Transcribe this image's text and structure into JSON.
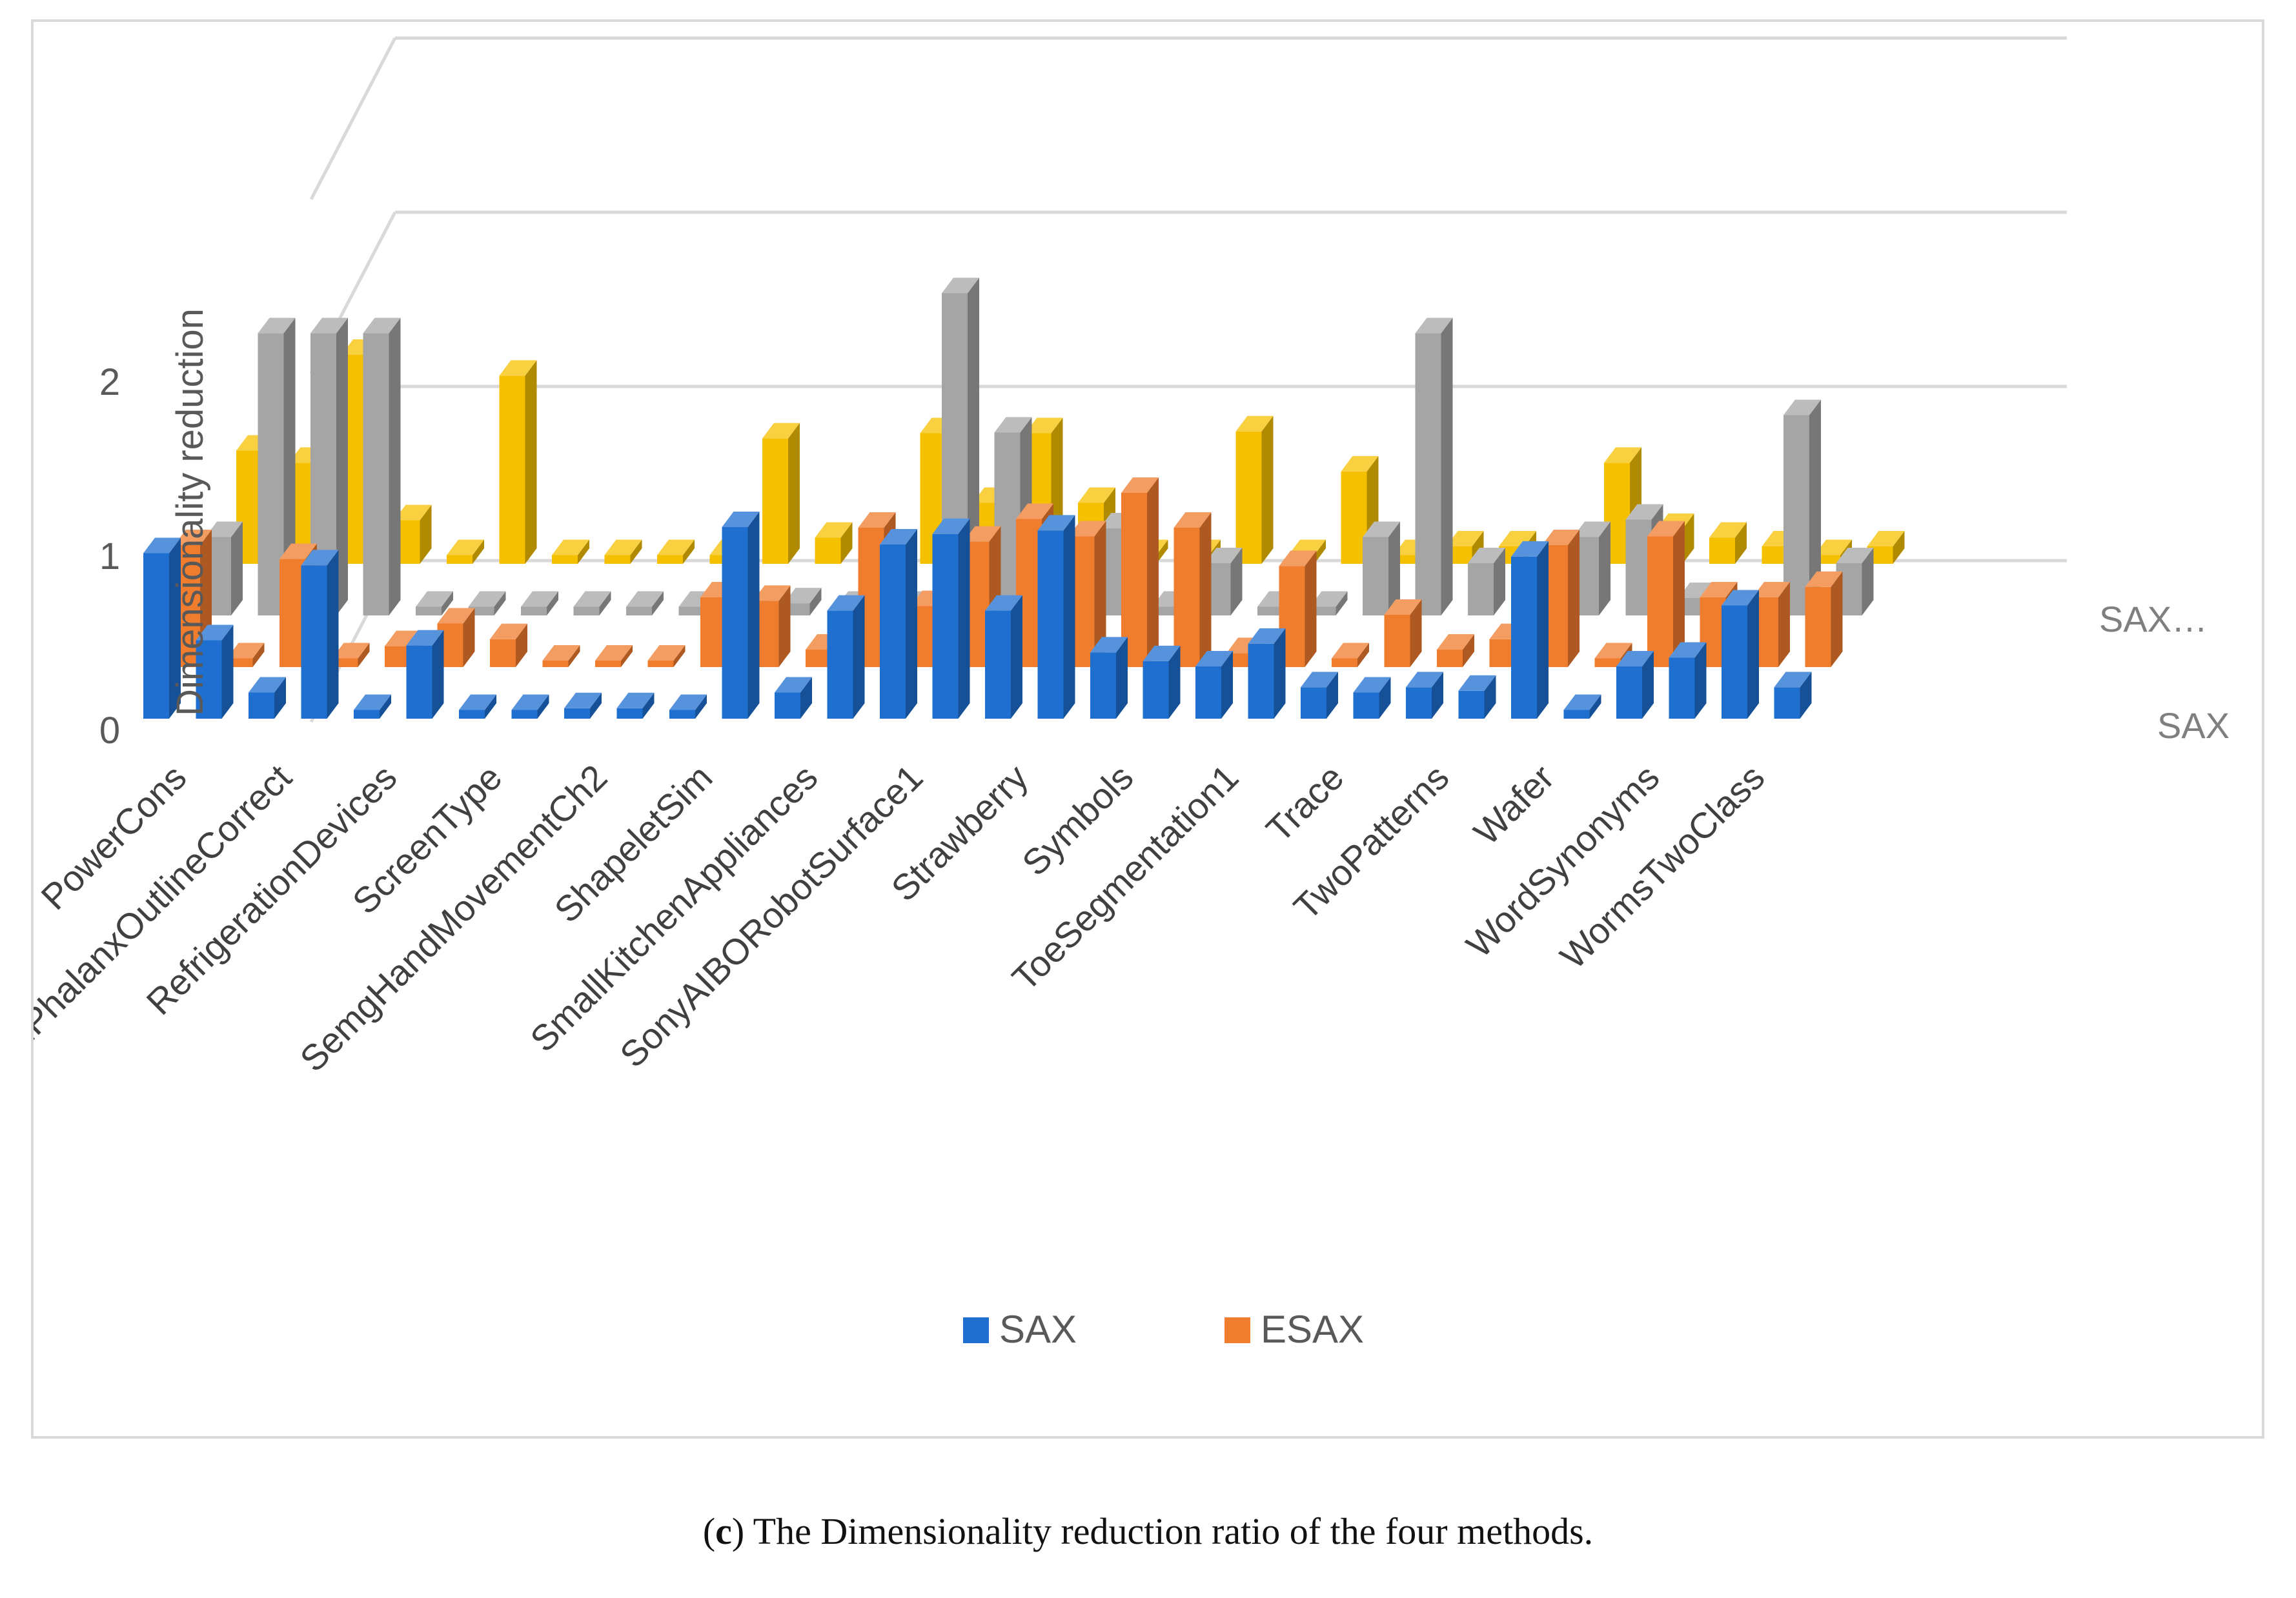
{
  "caption": {
    "letter": "c",
    "open": "(",
    "close": ")",
    "text": " The Dimensionality reduction ratio of the four methods."
  },
  "chart_data": {
    "type": "bar",
    "subtype": "3d-column",
    "ylabel": "Dimensionality reduction",
    "yticks": [
      "0",
      "1",
      "2"
    ],
    "ylim": [
      0,
      3
    ],
    "categories": [
      "PowerCons",
      "",
      "ProximalPhalanxOutlineCorrect",
      "",
      "RefrigerationDevices",
      "",
      "ScreenType",
      "",
      "SemgHandMovementCh2",
      "",
      "ShapeletSim",
      "",
      "SmallKitchenAppliances",
      "",
      "SonyAIBORobotSurface1",
      "",
      "Strawberry",
      "",
      "Symbols",
      "",
      "ToeSegmentation1",
      "",
      "Trace",
      "",
      "TwoPatterns",
      "",
      "Wafer",
      "",
      "WordSynonyms",
      "",
      "WormsTwoClass",
      ""
    ],
    "visible_category_labels": [
      "PowerCons",
      "ProximalPhalanxOutlineCorrect",
      "RefrigerationDevices",
      "ScreenType",
      "SemgHandMovementCh2",
      "ShapeletSim",
      "SmallKitchenAppliances",
      "SonyAIBORobotSurface1",
      "Strawberry",
      "Symbols",
      "ToeSegmentation1",
      "Trace",
      "TwoPatterns",
      "Wafer",
      "WordSynonyms",
      "WormsTwoClass"
    ],
    "series": [
      {
        "name": "SAX",
        "color": "#1f6fd1",
        "values": [
          0.95,
          0.45,
          0.15,
          0.88,
          0.05,
          0.42,
          0.05,
          0.05,
          0.06,
          0.06,
          0.05,
          1.1,
          0.15,
          0.62,
          1.0,
          1.06,
          0.62,
          1.08,
          0.38,
          0.33,
          0.3,
          0.43,
          0.18,
          0.15,
          0.18,
          0.16,
          0.93,
          0.05,
          0.3,
          0.35,
          0.65,
          0.18
        ]
      },
      {
        "name": "ESAX",
        "color": "#f07c2e",
        "values": [
          0.7,
          0.05,
          0.62,
          0.05,
          0.12,
          0.25,
          0.16,
          0.03,
          0.03,
          0.03,
          0.4,
          0.38,
          0.1,
          0.8,
          0.35,
          0.72,
          0.85,
          0.75,
          1.0,
          0.8,
          0.08,
          0.58,
          0.05,
          0.3,
          0.1,
          0.16,
          0.7,
          0.05,
          0.75,
          0.4,
          0.4,
          0.46
        ]
      },
      {
        "name": "SAX…",
        "color": "#a5a5a5",
        "values": [
          0.45,
          1.62,
          1.62,
          1.62,
          0.05,
          0.05,
          0.05,
          0.05,
          0.05,
          0.05,
          0.05,
          0.07,
          0.05,
          0.05,
          1.85,
          1.05,
          0.12,
          0.5,
          0.05,
          0.3,
          0.05,
          0.05,
          0.45,
          1.62,
          0.3,
          0.05,
          0.45,
          0.55,
          0.1,
          0.05,
          1.15,
          0.3
        ]
      },
      {
        "name": "",
        "color": "#f5c000",
        "values": [
          0.65,
          0.58,
          1.2,
          0.25,
          0.05,
          1.08,
          0.05,
          0.05,
          0.05,
          0.05,
          0.72,
          0.15,
          0.05,
          0.75,
          0.35,
          0.75,
          0.35,
          0.05,
          0.05,
          0.76,
          0.05,
          0.53,
          0.05,
          0.1,
          0.1,
          0.05,
          0.58,
          0.2,
          0.15,
          0.1,
          0.05,
          0.1
        ]
      }
    ],
    "depth_axis_labels": [
      "SAX",
      "SAX…"
    ],
    "legend": {
      "position": "bottom",
      "entries": [
        "SAX",
        "ESAX"
      ]
    },
    "grid": true
  }
}
